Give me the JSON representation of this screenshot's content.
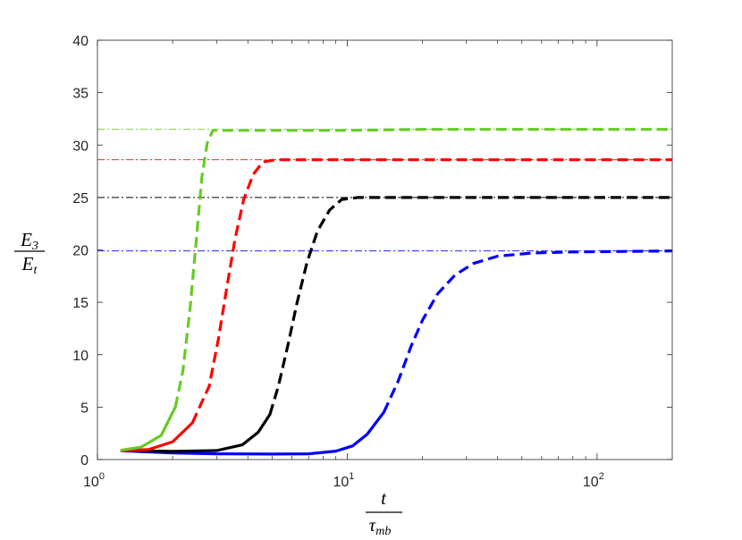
{
  "chart_data": {
    "type": "line",
    "x_scale": "log",
    "xlim": [
      1,
      200
    ],
    "ylim": [
      0,
      40
    ],
    "grid": false,
    "xlabel": {
      "numerator": "t",
      "denominator": "τ",
      "denominator_sub": "mb"
    },
    "ylabel": {
      "numerator": "E",
      "numerator_sub": "3",
      "denominator": "E",
      "denominator_sub": "t"
    },
    "x_ticks": [
      {
        "value": 1,
        "base": "10",
        "exp": "0"
      },
      {
        "value": 10,
        "base": "10",
        "exp": "1"
      },
      {
        "value": 100,
        "base": "10",
        "exp": "2"
      }
    ],
    "y_ticks": [
      0,
      5,
      10,
      15,
      20,
      25,
      30,
      35,
      40
    ],
    "series": [
      {
        "color": "#0000ff",
        "asymptote": 19.9,
        "points": [
          [
            1.25,
            0.85
          ],
          [
            1.5,
            0.75
          ],
          [
            2,
            0.62
          ],
          [
            3,
            0.55
          ],
          [
            5,
            0.52
          ],
          [
            7,
            0.55
          ],
          [
            9,
            0.8
          ],
          [
            10.5,
            1.3
          ],
          [
            12,
            2.4
          ],
          [
            14,
            4.5
          ],
          [
            16,
            7.5
          ],
          [
            18,
            10.8
          ],
          [
            20,
            13.3
          ],
          [
            23,
            15.8
          ],
          [
            27,
            17.6
          ],
          [
            32,
            18.7
          ],
          [
            40,
            19.4
          ],
          [
            55,
            19.7
          ],
          [
            80,
            19.8
          ],
          [
            120,
            19.85
          ],
          [
            200,
            19.9
          ]
        ]
      },
      {
        "color": "#000000",
        "asymptote": 25.0,
        "points": [
          [
            1.25,
            0.85
          ],
          [
            2,
            0.78
          ],
          [
            3,
            0.85
          ],
          [
            3.8,
            1.4
          ],
          [
            4.4,
            2.6
          ],
          [
            4.9,
            4.3
          ],
          [
            5.3,
            7.0
          ],
          [
            5.8,
            11.0
          ],
          [
            6.3,
            15.0
          ],
          [
            6.9,
            18.8
          ],
          [
            7.6,
            21.8
          ],
          [
            8.5,
            23.8
          ],
          [
            9.5,
            24.8
          ],
          [
            11,
            25.0
          ],
          [
            20,
            25.0
          ],
          [
            200,
            25.0
          ]
        ]
      },
      {
        "color": "#ff0000",
        "asymptote": 28.6,
        "points": [
          [
            1.25,
            0.85
          ],
          [
            1.6,
            0.95
          ],
          [
            2,
            1.7
          ],
          [
            2.4,
            3.5
          ],
          [
            2.8,
            7.0
          ],
          [
            3.05,
            11.5
          ],
          [
            3.3,
            16.5
          ],
          [
            3.55,
            21.0
          ],
          [
            3.85,
            24.8
          ],
          [
            4.2,
            27.2
          ],
          [
            4.6,
            28.4
          ],
          [
            5.2,
            28.6
          ],
          [
            10,
            28.6
          ],
          [
            200,
            28.6
          ]
        ]
      },
      {
        "color": "#66cc22",
        "asymptote": 31.5,
        "points": [
          [
            1.25,
            0.9
          ],
          [
            1.5,
            1.2
          ],
          [
            1.8,
            2.3
          ],
          [
            2.05,
            5.0
          ],
          [
            2.2,
            8.5
          ],
          [
            2.35,
            14.5
          ],
          [
            2.5,
            21.5
          ],
          [
            2.62,
            27.0
          ],
          [
            2.75,
            30.2
          ],
          [
            2.9,
            31.4
          ],
          [
            3.3,
            31.4
          ],
          [
            10,
            31.4
          ],
          [
            20,
            31.5
          ],
          [
            200,
            31.5
          ]
        ]
      }
    ]
  }
}
